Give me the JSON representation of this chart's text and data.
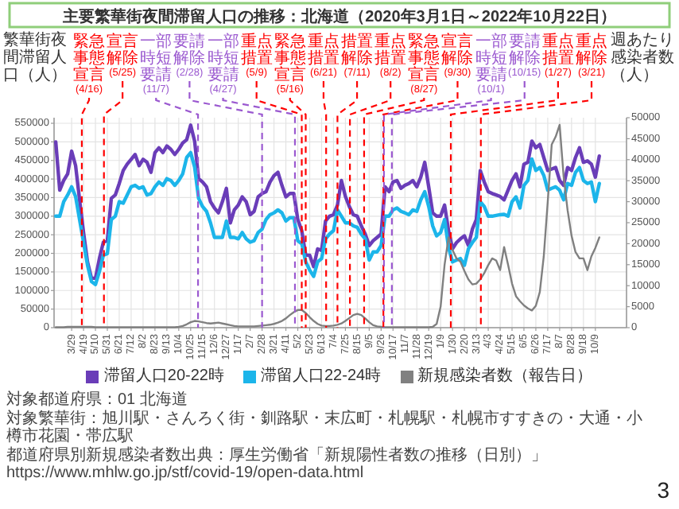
{
  "chart_data": {
    "type": "line",
    "title": "主要繁華街夜間滞留人口の推移：北海道（2020年3月1日～2022年10月22日）",
    "ylabel": "繁華街夜間滞留人口（人）",
    "y2label": "週あたり感染者数（人）",
    "x": [
      "2020-03-01",
      "2020-03-08",
      "2020-03-15",
      "2020-03-22",
      "2020-03-29",
      "2020-04-05",
      "2020-04-12",
      "2020-04-19",
      "2020-04-26",
      "2020-05-03",
      "2020-05-10",
      "2020-05-17",
      "2020-05-24",
      "2020-05-31",
      "2020-06-07",
      "2020-06-14",
      "2020-06-21",
      "2020-06-28",
      "2020-07-05",
      "2020-07-12",
      "2020-07-19",
      "2020-07-26",
      "2020-08-02",
      "2020-08-09",
      "2020-08-16",
      "2020-08-23",
      "2020-08-30",
      "2020-09-06",
      "2020-09-13",
      "2020-09-20",
      "2020-09-27",
      "2020-10-04",
      "2020-10-11",
      "2020-10-18",
      "2020-10-25",
      "2020-11-01",
      "2020-11-08",
      "2020-11-15",
      "2020-11-22",
      "2020-11-29",
      "2020-12-06",
      "2020-12-13",
      "2020-12-20",
      "2020-12-27",
      "2021-01-03",
      "2021-01-10",
      "2021-01-17",
      "2021-01-24",
      "2021-01-31",
      "2021-02-07",
      "2021-02-14",
      "2021-02-21",
      "2021-02-28",
      "2021-03-07",
      "2021-03-14",
      "2021-03-21",
      "2021-03-28",
      "2021-04-04",
      "2021-04-11",
      "2021-04-18",
      "2021-04-25",
      "2021-05-02",
      "2021-05-09",
      "2021-05-16",
      "2021-05-23",
      "2021-05-30",
      "2021-06-06",
      "2021-06-13",
      "2021-06-20",
      "2021-06-27",
      "2021-07-04",
      "2021-07-11",
      "2021-07-18",
      "2021-07-25",
      "2021-08-01",
      "2021-08-08",
      "2021-08-15",
      "2021-08-22",
      "2021-08-29",
      "2021-09-05",
      "2021-09-12",
      "2021-09-19",
      "2021-09-26",
      "2021-10-03",
      "2021-10-10",
      "2021-10-17",
      "2021-10-24",
      "2021-10-31",
      "2021-11-07",
      "2021-11-14",
      "2021-11-21",
      "2021-11-28",
      "2021-12-05",
      "2021-12-12",
      "2021-12-19",
      "2021-12-26",
      "2022-01-02",
      "2022-01-09",
      "2022-01-16",
      "2022-01-23",
      "2022-01-30",
      "2022-02-06",
      "2022-02-13",
      "2022-02-20",
      "2022-02-27",
      "2022-03-06",
      "2022-03-13",
      "2022-03-20",
      "2022-03-27",
      "2022-04-03",
      "2022-04-10",
      "2022-04-17",
      "2022-04-24",
      "2022-05-01",
      "2022-05-08",
      "2022-05-15",
      "2022-05-22",
      "2022-05-29",
      "2022-06-05",
      "2022-06-12",
      "2022-06-19",
      "2022-06-26",
      "2022-07-03",
      "2022-07-10",
      "2022-07-17",
      "2022-07-24",
      "2022-07-31",
      "2022-08-07",
      "2022-08-14",
      "2022-08-21",
      "2022-08-28",
      "2022-09-04",
      "2022-09-11",
      "2022-09-18",
      "2022-09-25",
      "2022-10-02",
      "2022-10-09",
      "2022-10-16"
    ],
    "series": [
      {
        "name": "滞留人口20-22時",
        "color": "#6a3db8",
        "values": [
          500000,
          370000,
          396000,
          414000,
          475000,
          436000,
          344000,
          256000,
          177000,
          133000,
          133000,
          186000,
          230000,
          234000,
          348000,
          357000,
          388000,
          423000,
          440000,
          453000,
          466000,
          436000,
          453000,
          445000,
          418000,
          471000,
          484000,
          471000,
          489000,
          480000,
          466000,
          480000,
          497000,
          506000,
          545000,
          502000,
          401000,
          392000,
          379000,
          339000,
          322000,
          309000,
          339000,
          375000,
          282000,
          317000,
          330000,
          352000,
          339000,
          304000,
          313000,
          352000,
          361000,
          366000,
          392000,
          409000,
          418000,
          383000,
          352000,
          361000,
          361000,
          291000,
          261000,
          195000,
          195000,
          164000,
          212000,
          208000,
          287000,
          300000,
          304000,
          330000,
          396000,
          353000,
          326000,
          304000,
          300000,
          274000,
          252000,
          221000,
          234000,
          243000,
          252000,
          379000,
          366000,
          392000,
          396000,
          375000,
          383000,
          388000,
          396000,
          379000,
          405000,
          445000,
          379000,
          309000,
          300000,
          300000,
          330000,
          261000,
          212000,
          229000,
          239000,
          247000,
          221000,
          265000,
          291000,
          423000,
          392000,
          366000,
          361000,
          357000,
          353000,
          344000,
          370000,
          396000,
          414000,
          379000,
          440000,
          445000,
          502000,
          484000,
          493000,
          458000,
          423000,
          427000,
          431000,
          396000,
          383000,
          431000,
          423000,
          458000,
          484000,
          445000,
          449000,
          440000,
          405000,
          462000
        ]
      },
      {
        "name": "滞留人口22-24時",
        "color": "#1cb5ea",
        "values": [
          300000,
          300000,
          339000,
          357000,
          379000,
          353000,
          291000,
          230000,
          168000,
          124000,
          116000,
          151000,
          195000,
          199000,
          291000,
          300000,
          339000,
          335000,
          357000,
          379000,
          383000,
          375000,
          379000,
          357000,
          361000,
          379000,
          392000,
          383000,
          401000,
          396000,
          383000,
          396000,
          414000,
          458000,
          471000,
          432000,
          348000,
          326000,
          313000,
          282000,
          243000,
          243000,
          243000,
          287000,
          243000,
          243000,
          239000,
          256000,
          239000,
          230000,
          234000,
          256000,
          265000,
          291000,
          304000,
          309000,
          317000,
          309000,
          287000,
          296000,
          296000,
          234000,
          226000,
          177000,
          155000,
          138000,
          177000,
          186000,
          239000,
          252000,
          261000,
          317000,
          300000,
          282000,
          282000,
          274000,
          270000,
          252000,
          239000,
          182000,
          204000,
          204000,
          221000,
          300000,
          300000,
          317000,
          322000,
          313000,
          309000,
          304000,
          317000,
          313000,
          344000,
          366000,
          326000,
          274000,
          247000,
          256000,
          291000,
          216000,
          177000,
          182000,
          186000,
          168000,
          212000,
          229000,
          243000,
          339000,
          326000,
          300000,
          300000,
          302000,
          304000,
          305000,
          300000,
          339000,
          352000,
          322000,
          383000,
          396000,
          454000,
          423000,
          431000,
          410000,
          370000,
          375000,
          379000,
          370000,
          344000,
          388000,
          383000,
          418000,
          431000,
          396000,
          388000,
          392000,
          339000,
          388000
        ]
      },
      {
        "name": "新規感染者数（報告日）",
        "color": "#808080",
        "axis": "y2",
        "values": [
          100,
          100,
          100,
          200,
          200,
          200,
          200,
          200,
          200,
          200,
          100,
          100,
          100,
          100,
          100,
          100,
          100,
          100,
          100,
          100,
          100,
          100,
          100,
          100,
          100,
          100,
          100,
          100,
          100,
          100,
          100,
          200,
          400,
          800,
          1300,
          1600,
          1500,
          1300,
          1100,
          1000,
          1100,
          1200,
          1000,
          800,
          600,
          400,
          300,
          300,
          300,
          300,
          300,
          400,
          500,
          600,
          700,
          900,
          1200,
          1600,
          2200,
          3000,
          3700,
          4200,
          4200,
          3500,
          2500,
          1600,
          900,
          500,
          400,
          400,
          500,
          700,
          1000,
          1600,
          2300,
          3000,
          3300,
          3000,
          2200,
          1300,
          600,
          300,
          200,
          100,
          100,
          100,
          100,
          100,
          100,
          100,
          100,
          100,
          100,
          100,
          100,
          200,
          900,
          5000,
          15000,
          21500,
          18500,
          16500,
          15700,
          13500,
          11500,
          10300,
          10500,
          11500,
          13000,
          14900,
          16500,
          16000,
          13700,
          19200,
          15000,
          10500,
          7500,
          6300,
          5300,
          4600,
          4100,
          5200,
          8500,
          17000,
          30000,
          43600,
          45500,
          48300,
          36000,
          28000,
          21900,
          18000,
          16500,
          16500,
          13700,
          17000,
          19000,
          21500
        ]
      }
    ],
    "xlim": [
      "2020-02-27",
      "2022-12-03"
    ],
    "xticks": [
      {
        "value": "2020-03-29",
        "label": "3/29"
      },
      {
        "value": "2020-04-19",
        "label": "4/19"
      },
      {
        "value": "2020-05-10",
        "label": "5/10"
      },
      {
        "value": "2020-05-31",
        "label": "5/31"
      },
      {
        "value": "2020-06-21",
        "label": "6/21"
      },
      {
        "value": "2020-07-12",
        "label": "7/12"
      },
      {
        "value": "2020-08-02",
        "label": "8/2"
      },
      {
        "value": "2020-08-23",
        "label": "8/23"
      },
      {
        "value": "2020-09-13",
        "label": "9/13"
      },
      {
        "value": "2020-10-04",
        "label": "10/4"
      },
      {
        "value": "2020-10-25",
        "label": "10/25"
      },
      {
        "value": "2020-11-15",
        "label": "11/15"
      },
      {
        "value": "2020-12-06",
        "label": "12/6"
      },
      {
        "value": "2020-12-27",
        "label": "12/27"
      },
      {
        "value": "2021-01-17",
        "label": "1/17"
      },
      {
        "value": "2021-02-07",
        "label": "2/7"
      },
      {
        "value": "2021-02-28",
        "label": "2/28"
      },
      {
        "value": "2021-03-21",
        "label": "3/21"
      },
      {
        "value": "2021-04-11",
        "label": "4/11"
      },
      {
        "value": "2021-05-02",
        "label": "5/2"
      },
      {
        "value": "2021-05-23",
        "label": "5/23"
      },
      {
        "value": "2021-06-13",
        "label": "6/13"
      },
      {
        "value": "2021-07-04",
        "label": "7/4"
      },
      {
        "value": "2021-07-25",
        "label": "7/25"
      },
      {
        "value": "2021-08-15",
        "label": "8/15"
      },
      {
        "value": "2021-09-05",
        "label": "9/5"
      },
      {
        "value": "2021-09-26",
        "label": "9/26"
      },
      {
        "value": "2021-10-17",
        "label": "10/17"
      },
      {
        "value": "2021-11-07",
        "label": "11/7"
      },
      {
        "value": "2021-11-28",
        "label": "11/28"
      },
      {
        "value": "2021-12-19",
        "label": "12/19"
      },
      {
        "value": "2022-01-09",
        "label": "1/9"
      },
      {
        "value": "2022-01-30",
        "label": "1/30"
      },
      {
        "value": "2022-02-20",
        "label": "2/20"
      },
      {
        "value": "2022-03-13",
        "label": "3/13"
      },
      {
        "value": "2022-04-03",
        "label": "4/3"
      },
      {
        "value": "2022-04-24",
        "label": "4/24"
      },
      {
        "value": "2022-05-15",
        "label": "5/15"
      },
      {
        "value": "2022-06-05",
        "label": "6/5"
      },
      {
        "value": "2022-06-26",
        "label": "6/26"
      },
      {
        "value": "2022-07-17",
        "label": "7/17"
      },
      {
        "value": "2022-08-07",
        "label": "8/7"
      },
      {
        "value": "2022-08-28",
        "label": "8/28"
      },
      {
        "value": "2022-09-18",
        "label": "9/18"
      },
      {
        "value": "2022-10-09",
        "label": "10/9"
      }
    ],
    "ylim": [
      0,
      565000
    ],
    "yticks": [
      0,
      50000,
      100000,
      150000,
      200000,
      250000,
      300000,
      350000,
      400000,
      450000,
      500000,
      550000
    ],
    "y2lim": [
      0,
      50000
    ],
    "y2ticks": [
      0,
      5000,
      10000,
      15000,
      20000,
      25000,
      30000,
      35000,
      40000,
      45000,
      50000
    ],
    "ref_lines": [
      {
        "axis": "x",
        "value": "2020-04-16",
        "label": "緊急事態宣言(4/16)",
        "color": "#ff0000",
        "line_style": "dashed"
      },
      {
        "axis": "x",
        "value": "2020-05-25",
        "label": "宣言解除(5/25)",
        "color": "#ff0000",
        "line_style": "dashed"
      },
      {
        "axis": "x",
        "value": "2020-11-07",
        "label": "一部時短要請(11/7)",
        "color": "#9b59d0",
        "line_style": "dashed"
      },
      {
        "axis": "x",
        "value": "2021-02-28",
        "label": "要請解除(2/28)",
        "color": "#9b59d0",
        "line_style": "dashed"
      },
      {
        "axis": "x",
        "value": "2021-04-27",
        "label": "一部時短要請(4/27)",
        "color": "#9b59d0",
        "line_style": "dashed"
      },
      {
        "axis": "x",
        "value": "2021-05-09",
        "label": "重点措置(5/9)",
        "color": "#ff0000",
        "line_style": "dashed"
      },
      {
        "axis": "x",
        "value": "2021-05-16",
        "label": "緊急事態宣言(5/16)",
        "color": "#ff0000",
        "line_style": "dashed"
      },
      {
        "axis": "x",
        "value": "2021-06-21",
        "label": "重点措置(6/21)",
        "color": "#ff0000",
        "line_style": "dashed"
      },
      {
        "axis": "x",
        "value": "2021-07-11",
        "label": "措置解除(7/11)",
        "color": "#ff0000",
        "line_style": "dashed"
      },
      {
        "axis": "x",
        "value": "2021-08-02",
        "label": "重点措置(8/2)",
        "color": "#ff0000",
        "line_style": "dashed"
      },
      {
        "axis": "x",
        "value": "2021-08-27",
        "label": "緊急事態宣言(8/27)",
        "color": "#ff0000",
        "line_style": "dashed"
      },
      {
        "axis": "x",
        "value": "2021-09-30",
        "label": "宣言解除(9/30)",
        "color": "#ff0000",
        "line_style": "dashed"
      },
      {
        "axis": "x",
        "value": "2021-10-01",
        "label": "一部時短要請(10/1)",
        "color": "#9b59d0",
        "line_style": "dashed"
      },
      {
        "axis": "x",
        "value": "2021-10-15",
        "label": "要請解除(10/15)",
        "color": "#9b59d0",
        "line_style": "dashed"
      },
      {
        "axis": "x",
        "value": "2022-01-27",
        "label": "重点措置(1/27)",
        "color": "#ff0000",
        "line_style": "dashed"
      },
      {
        "axis": "x",
        "value": "2022-03-21",
        "label": "重点解除(3/21)",
        "color": "#ff0000",
        "line_style": "dashed"
      }
    ],
    "annotations": [
      "対象都道府県：01 北海道",
      "対象繁華街：旭川駅・さんろく街・釧路駅・末広町・札幌駅・札幌市すすきの・大通・小樽市花園・帯広駅",
      "都道府県別新規感染者数出典：厚生労働省「新規陽性者数の推移（日別）」 https://www.mhlw.go.jp/stf/covid-19/open-data.html",
      "3"
    ],
    "grid": true,
    "legend": "bottom",
    "line_style": "solid"
  }
}
